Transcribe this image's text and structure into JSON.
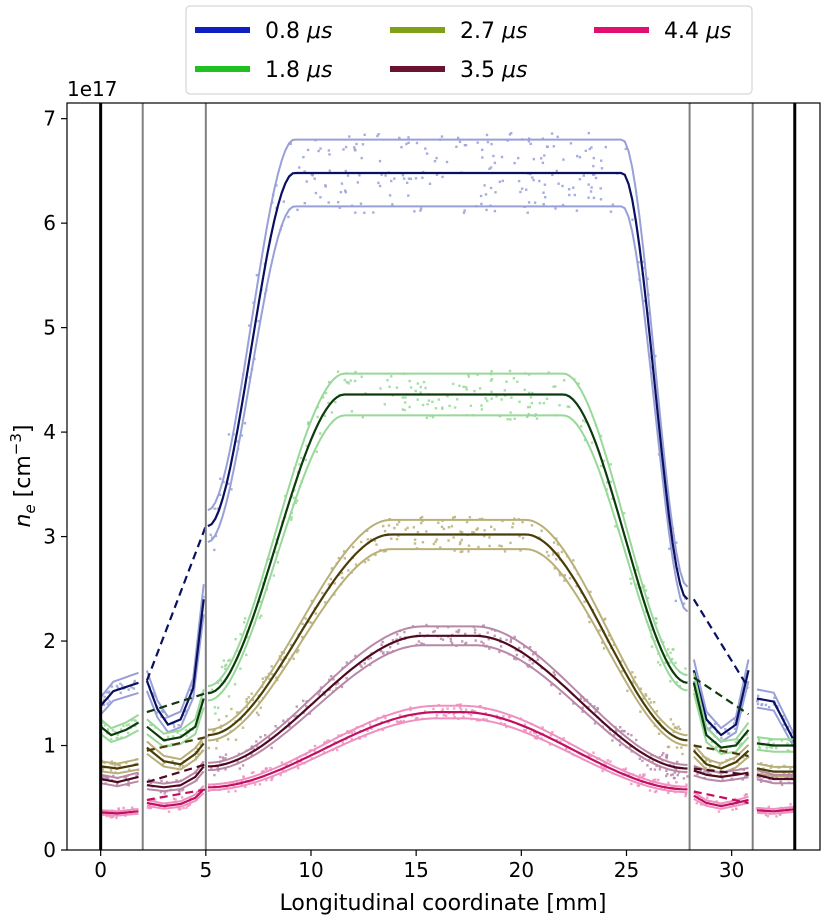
{
  "chart_data": {
    "type": "line",
    "xlabel": "Longitudinal coordinate [mm]",
    "ylabel_main": "n",
    "ylabel_sub": "e",
    "ylabel_unit_open": " [cm",
    "ylabel_unit_sup": "−3",
    "ylabel_unit_close": "]",
    "y_offset_label": "1e17",
    "xlim": [
      -1.6,
      34.2
    ],
    "ylim": [
      0,
      7.15
    ],
    "x_ticks": [
      0,
      5,
      10,
      15,
      20,
      25,
      30
    ],
    "y_ticks": [
      0,
      1,
      2,
      3,
      4,
      5,
      6,
      7
    ],
    "x_tick_labels": [
      "0",
      "5",
      "10",
      "15",
      "20",
      "25",
      "30"
    ],
    "y_tick_labels": [
      "0",
      "1",
      "2",
      "3",
      "4",
      "5",
      "6",
      "7"
    ],
    "legend_position": "top-center, outside",
    "vertical_lines": [
      {
        "x": 0,
        "color": "#000000",
        "style": "thick"
      },
      {
        "x": 2,
        "color": "#808080",
        "style": "thin"
      },
      {
        "x": 5,
        "color": "#808080",
        "style": "thin"
      },
      {
        "x": 28,
        "color": "#808080",
        "style": "thin"
      },
      {
        "x": 31,
        "color": "#808080",
        "style": "thin"
      },
      {
        "x": 33,
        "color": "#000000",
        "style": "thick"
      }
    ],
    "series": [
      {
        "name": "0.8 μs",
        "name_num": "0.8",
        "name_unit": "μs",
        "legend_color": "#1020c0",
        "mean_color": "#0a1060",
        "band_color": "#98a0d8",
        "plateau": 6.48,
        "band": 0.32,
        "ramp": [
          5.1,
          9.2,
          24.8,
          27.9
        ],
        "entry_edge": 3.1,
        "exit_edge": 2.4,
        "left_seg": [
          [
            0,
            1.38
          ],
          [
            0.6,
            1.52
          ],
          [
            1.8,
            1.6
          ]
        ],
        "mid_seg": [
          [
            2.2,
            1.62
          ],
          [
            2.7,
            1.35
          ],
          [
            3.2,
            1.2
          ],
          [
            3.8,
            1.25
          ],
          [
            4.4,
            1.55
          ],
          [
            4.9,
            2.4
          ]
        ],
        "right_seg": [
          [
            28.2,
            1.72
          ],
          [
            28.8,
            1.25
          ],
          [
            29.5,
            1.1
          ],
          [
            30.2,
            1.2
          ],
          [
            30.8,
            1.72
          ]
        ],
        "far_seg": [
          [
            31.2,
            1.45
          ],
          [
            32,
            1.42
          ],
          [
            33,
            1.03
          ]
        ],
        "dashed": [
          [
            [
              2.2,
              1.62
            ],
            [
              5.0,
              3.1
            ]
          ],
          [
            [
              28.2,
              2.4
            ],
            [
              30.8,
              1.55
            ]
          ]
        ]
      },
      {
        "name": "1.8 μs",
        "name_num": "1.8",
        "name_unit": "μs",
        "legend_color": "#20c020",
        "mean_color": "#0c3a0c",
        "band_color": "#98d898",
        "plateau": 4.36,
        "band": 0.2,
        "ramp": [
          5.1,
          11.6,
          22.0,
          27.9
        ],
        "entry_edge": 1.5,
        "exit_edge": 1.6,
        "left_seg": [
          [
            0,
            1.18
          ],
          [
            0.5,
            1.1
          ],
          [
            1.2,
            1.15
          ],
          [
            1.8,
            1.22
          ]
        ],
        "mid_seg": [
          [
            2.2,
            1.18
          ],
          [
            3.0,
            1.05
          ],
          [
            3.8,
            1.08
          ],
          [
            4.5,
            1.18
          ],
          [
            4.9,
            1.45
          ]
        ],
        "right_seg": [
          [
            28.2,
            1.6
          ],
          [
            28.8,
            1.1
          ],
          [
            29.5,
            0.98
          ],
          [
            30.2,
            1.0
          ],
          [
            30.8,
            1.15
          ]
        ],
        "far_seg": [
          [
            31.2,
            1.02
          ],
          [
            32,
            1.0
          ],
          [
            33,
            1.0
          ]
        ],
        "dashed": [
          [
            [
              2.2,
              1.32
            ],
            [
              5.0,
              1.5
            ]
          ],
          [
            [
              28.2,
              1.65
            ],
            [
              30.8,
              1.3
            ]
          ]
        ]
      },
      {
        "name": "2.7 μs",
        "name_num": "2.7",
        "name_unit": "μs",
        "legend_color": "#80a018",
        "mean_color": "#4a3c08",
        "band_color": "#b8b078",
        "plateau": 3.02,
        "band": 0.14,
        "ramp": [
          5.1,
          13.8,
          20.2,
          27.9
        ],
        "entry_edge": 1.1,
        "exit_edge": 1.05,
        "left_seg": [
          [
            0,
            0.8
          ],
          [
            0.8,
            0.78
          ],
          [
            1.8,
            0.82
          ]
        ],
        "mid_seg": [
          [
            2.2,
            0.98
          ],
          [
            3.0,
            0.85
          ],
          [
            3.8,
            0.82
          ],
          [
            4.5,
            0.92
          ],
          [
            4.9,
            1.02
          ]
        ],
        "right_seg": [
          [
            28.2,
            0.95
          ],
          [
            28.8,
            0.82
          ],
          [
            29.5,
            0.78
          ],
          [
            30.2,
            0.84
          ],
          [
            30.8,
            0.95
          ]
        ],
        "far_seg": [
          [
            31.2,
            0.78
          ],
          [
            32,
            0.75
          ],
          [
            33,
            0.75
          ]
        ],
        "dashed": [
          [
            [
              2.2,
              0.95
            ],
            [
              5.0,
              1.08
            ]
          ],
          [
            [
              28.2,
              1.0
            ],
            [
              30.8,
              0.9
            ]
          ]
        ]
      },
      {
        "name": "3.5 μs",
        "name_num": "3.5",
        "name_unit": "μs",
        "legend_color": "#6a1230",
        "mean_color": "#500a20",
        "band_color": "#b888a8",
        "plateau": 2.05,
        "band": 0.09,
        "ramp": [
          5.1,
          15.3,
          17.8,
          27.9
        ],
        "entry_edge": 0.8,
        "exit_edge": 0.78,
        "left_seg": [
          [
            0,
            0.68
          ],
          [
            0.8,
            0.65
          ],
          [
            1.8,
            0.7
          ]
        ],
        "mid_seg": [
          [
            2.2,
            0.62
          ],
          [
            3.0,
            0.6
          ],
          [
            3.8,
            0.62
          ],
          [
            4.5,
            0.7
          ],
          [
            4.9,
            0.8
          ]
        ],
        "right_seg": [
          [
            28.2,
            0.76
          ],
          [
            28.8,
            0.72
          ],
          [
            29.5,
            0.7
          ],
          [
            30.2,
            0.72
          ],
          [
            30.8,
            0.74
          ]
        ],
        "far_seg": [
          [
            31.2,
            0.72
          ],
          [
            32,
            0.68
          ],
          [
            33,
            0.68
          ]
        ],
        "dashed": [
          [
            [
              2.2,
              0.65
            ],
            [
              5.0,
              0.82
            ]
          ],
          [
            [
              28.2,
              0.78
            ],
            [
              30.8,
              0.72
            ]
          ]
        ]
      },
      {
        "name": "4.4 μs",
        "name_num": "4.4",
        "name_unit": "μs",
        "legend_color": "#e01070",
        "mean_color": "#c01060",
        "band_color": "#f090c0",
        "plateau": 1.32,
        "band": 0.06,
        "ramp": [
          5.1,
          16.0,
          17.2,
          27.9
        ],
        "entry_edge": 0.6,
        "exit_edge": 0.58,
        "left_seg": [
          [
            0,
            0.36
          ],
          [
            0.8,
            0.35
          ],
          [
            1.8,
            0.37
          ]
        ],
        "mid_seg": [
          [
            2.2,
            0.45
          ],
          [
            3.0,
            0.42
          ],
          [
            3.8,
            0.44
          ],
          [
            4.5,
            0.5
          ],
          [
            4.9,
            0.58
          ]
        ],
        "right_seg": [
          [
            28.2,
            0.52
          ],
          [
            28.8,
            0.45
          ],
          [
            29.5,
            0.42
          ],
          [
            30.2,
            0.45
          ],
          [
            30.8,
            0.48
          ]
        ],
        "far_seg": [
          [
            31.2,
            0.38
          ],
          [
            32,
            0.37
          ],
          [
            33,
            0.39
          ]
        ],
        "dashed": [
          [
            [
              2.2,
              0.48
            ],
            [
              5.0,
              0.58
            ]
          ],
          [
            [
              28.2,
              0.56
            ],
            [
              30.8,
              0.45
            ]
          ]
        ]
      }
    ]
  }
}
